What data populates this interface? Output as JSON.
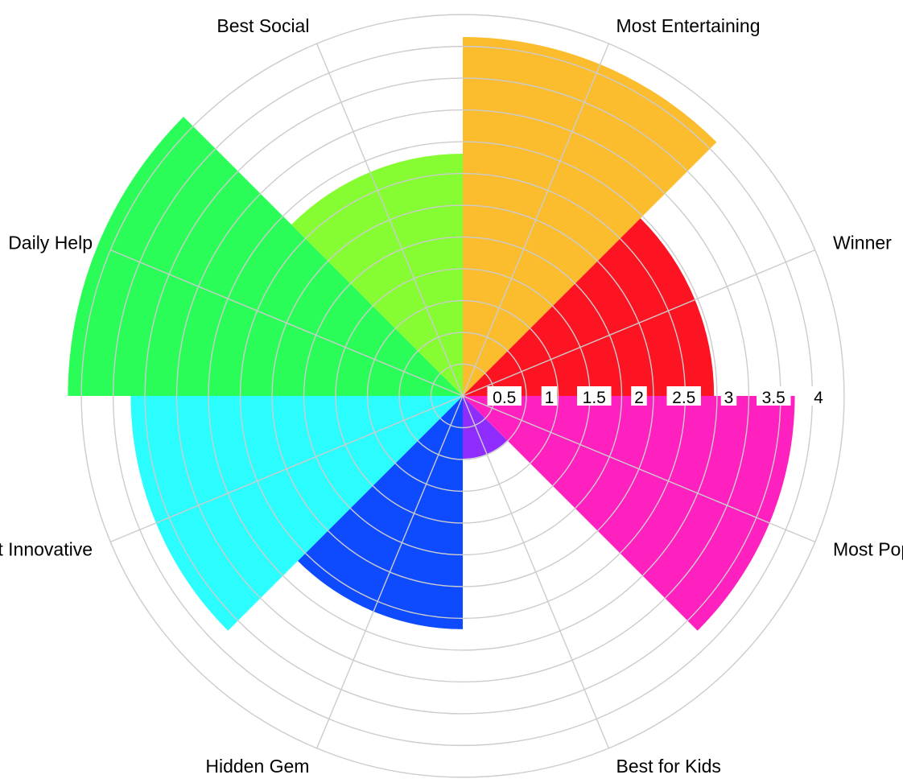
{
  "chart_data": {
    "type": "nightingale-rose",
    "title": "",
    "categories": [
      "Most Entertaining",
      "Winner",
      "Most Popular",
      "Best for Kids",
      "Hidden Gem",
      "Most Innovative",
      "Daily Help",
      "Best Social"
    ],
    "values": [
      4.0,
      2.8,
      3.7,
      0.7,
      2.6,
      3.7,
      4.4,
      2.7
    ],
    "colors": [
      "#fbbc2e",
      "#fc1423",
      "#fe21bf",
      "#8e2dfe",
      "#0f4bfe",
      "#2bfdfe",
      "#2bfd58",
      "#86fd32"
    ],
    "radial_ticks": [
      "0.5",
      "1",
      "1.5",
      "2",
      "2.5",
      "3",
      "3.5",
      "4"
    ],
    "radial_tick_values": [
      0.5,
      1,
      1.5,
      2,
      2.5,
      3,
      3.5,
      4
    ],
    "rmax": 4,
    "grid": true,
    "legend": "none"
  }
}
